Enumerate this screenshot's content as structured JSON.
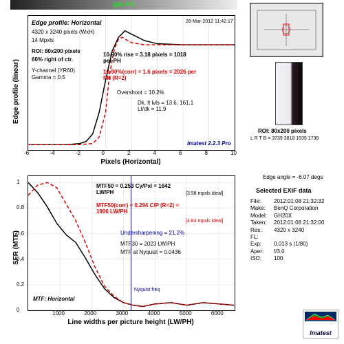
{
  "file_title": "gjfbl.JPG",
  "timestamp": "28-Mar-2012 11:42:17",
  "edge_info": {
    "title": "Edge profile: Horizontal",
    "dims": "4320 x 3240 pixels (WxH)",
    "mpx": "14 Mpxls",
    "roi": "ROI: 80x200 pixels",
    "pos": "60% right of ctr.",
    "ych": "Y-channel  (YR60)",
    "gamma": "Gamma = 0.5",
    "rise_black": "10-90% rise = 3.18 pixels = 1018 per PH",
    "rise_red": "10-90%(corr) = 1.6 pixels = 2026 per PH  (R=2)",
    "overshoot": "Overshoot = 10.2%",
    "dklt": "Dk, lt lvls = 13.6, 161.1\nLt/dk = 11.9",
    "version": "Imatest 2.2.3 Pro"
  },
  "chart_top": {
    "xlim": [
      -6,
      10
    ],
    "ylim": [
      0,
      1.25
    ],
    "xticks": [
      -6,
      -4,
      -2,
      0,
      2,
      4,
      6,
      8,
      10
    ],
    "ylabel": "Edge profile (linear)",
    "xlabel": "Pixels (Horizontal)",
    "grid": "#d0d0d0",
    "series": [
      {
        "name": "edge-black",
        "color": "#000",
        "width": 1.5,
        "x": [
          -6,
          -4,
          -3,
          -2,
          -1.5,
          -1,
          -0.5,
          0,
          0.5,
          1,
          1.5,
          2,
          3,
          4,
          6,
          8,
          10
        ],
        "y": [
          0.05,
          0.05,
          0.05,
          0.06,
          0.08,
          0.15,
          0.35,
          0.65,
          0.92,
          1.05,
          1.11,
          1.08,
          1.02,
          0.99,
          0.98,
          0.98,
          0.98
        ]
      },
      {
        "name": "edge-red",
        "color": "#d00",
        "width": 1.5,
        "dash": "5,3",
        "x": [
          -6,
          -2,
          -1,
          -0.5,
          0,
          0.3,
          0.7,
          1,
          1.3,
          1.7,
          2,
          3,
          10
        ],
        "y": [
          0.05,
          0.05,
          0.06,
          0.12,
          0.35,
          0.7,
          0.95,
          1.03,
          1.05,
          1.02,
          1.0,
          0.98,
          0.98
        ]
      }
    ]
  },
  "mtf_info": {
    "m50": "MTF50 = 0.253 Cy/Pxl = 1642 LW/PH",
    "m50ideal": "[3.58 mpxls ideal]",
    "m50c": "MTF50(corr) = 0.294 C/P  (R=2) = 1906 LW/PH",
    "m50cideal": "[4.84 mpxls ideal]",
    "usharp": "Undersharpening = 21.2%",
    "m30": "MTF30 = 2023 LW/PH",
    "nyq": "MTF at Nyquist = 0.0436",
    "subtitle": "MTF: Horizontal",
    "nyqlabel": "Nyquist freq"
  },
  "chart_bot": {
    "xlim": [
      0,
      6500
    ],
    "ylim": [
      0,
      1.05
    ],
    "xticks": [
      1000,
      2000,
      3000,
      4000,
      5000,
      6000
    ],
    "yticks": [
      0,
      0.2,
      0.4,
      0.6,
      0.8,
      1.0
    ],
    "ylabel": "SFR (MTF)",
    "xlabel": "Line widths per picture height (LW/PH)",
    "nyquist_x": 3240,
    "series": [
      {
        "name": "mtf-black",
        "color": "#000",
        "width": 1.5,
        "x": [
          0,
          300,
          600,
          900,
          1200,
          1500,
          1800,
          2100,
          2400,
          2700,
          3000,
          3300,
          3600,
          4000,
          4500,
          5000,
          5500,
          6000,
          6480
        ],
        "y": [
          1.0,
          0.92,
          0.81,
          0.68,
          0.59,
          0.53,
          0.41,
          0.28,
          0.17,
          0.1,
          0.06,
          0.04,
          0.03,
          0.05,
          0.06,
          0.04,
          0.06,
          0.05,
          0.04
        ]
      },
      {
        "name": "mtf-red",
        "color": "#d00",
        "width": 1.5,
        "dash": "5,3",
        "x": [
          0,
          300,
          600,
          900,
          1200,
          1500,
          1800,
          2100,
          2400,
          2700,
          3000,
          3300,
          3600,
          4000,
          4500,
          5000,
          5500,
          6000,
          6480
        ],
        "y": [
          0.9,
          0.98,
          1.0,
          0.96,
          0.83,
          0.7,
          0.53,
          0.34,
          0.19,
          0.11,
          0.06,
          0.04,
          0.03,
          0.05,
          0.06,
          0.04,
          0.06,
          0.05,
          0.04
        ]
      }
    ]
  },
  "roi_caption": "ROI: 80x200 pixels",
  "roi_sub": "L R T B = 3739 3818  1539 1738",
  "edge_angle": "Edge angle = -6.07 degs",
  "exif": {
    "title": "Selected EXIF data",
    "rows": [
      [
        "File:",
        "2012:01:08 21:32:32"
      ],
      [
        "Make:",
        "BenQ Corporation"
      ],
      [
        "Model:",
        "GH20X"
      ],
      [
        "Taken:",
        "2012:01:08 21:32:00"
      ],
      [
        "Res:",
        "4320 x 3240"
      ],
      [
        "FL:",
        ""
      ],
      [
        "Exp:",
        "0.013 s  (1/80)"
      ],
      [
        "Aper:",
        "f/3.0"
      ],
      [
        "ISO:",
        "100"
      ]
    ]
  },
  "logo": "Imatest"
}
